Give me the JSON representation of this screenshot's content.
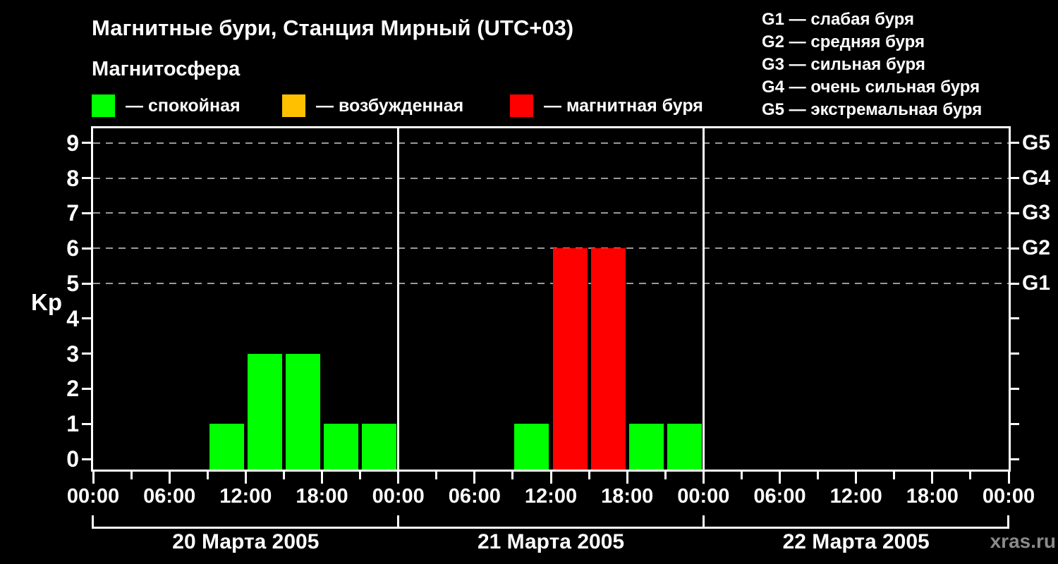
{
  "page": {
    "background": "#000000",
    "watermark": "xras.ru"
  },
  "header": {
    "title": "Магнитные бури, Станция Мирный (UTC+03)",
    "subtitle": "Магнитосфера"
  },
  "legend": {
    "items": [
      {
        "name": "quiet",
        "label": "— спокойная",
        "color": "#00ff00"
      },
      {
        "name": "excited",
        "label": "— возбужденная",
        "color": "#ffc000"
      },
      {
        "name": "storm",
        "label": "— магнитная буря",
        "color": "#ff0000"
      }
    ]
  },
  "g_legend": {
    "lines": [
      "G1 — слабая буря",
      "G2 — средняя буря",
      "G3 — сильная буря",
      "G4 — очень сильная буря",
      "G5 — экстремальная буря"
    ]
  },
  "chart_data": {
    "type": "bar",
    "title": "Магнитные бури, Станция Мирный (UTC+03)",
    "ylabel": "Kp",
    "ylim": [
      0,
      9
    ],
    "yticks": [
      0,
      1,
      2,
      3,
      4,
      5,
      6,
      7,
      8,
      9
    ],
    "grid_values": [
      5,
      6,
      7,
      8,
      9
    ],
    "grid_style": "dashed",
    "legend_position": "top",
    "right_axis_ticks": [
      0,
      1,
      2,
      3,
      4,
      5,
      6,
      7,
      8,
      9
    ],
    "right_axis_labels": [
      {
        "value": 9,
        "label": "G5"
      },
      {
        "value": 8,
        "label": "G4"
      },
      {
        "value": 7,
        "label": "G3"
      },
      {
        "value": 6,
        "label": "G2"
      },
      {
        "value": 5,
        "label": "G1"
      }
    ],
    "x_time_labels": [
      "00:00",
      "06:00",
      "12:00",
      "18:00"
    ],
    "interval_hours": 3,
    "days": [
      {
        "date": "20 Марта 2005",
        "kp": [
          0,
          0,
          0,
          1,
          3,
          3,
          1,
          1
        ]
      },
      {
        "date": "21 Марта 2005",
        "kp": [
          0,
          0,
          0,
          1,
          6,
          6,
          1,
          1
        ]
      },
      {
        "date": "22 Марта 2005",
        "kp": [
          0,
          0,
          0,
          0,
          0,
          0,
          0,
          0
        ]
      }
    ],
    "color_rules": {
      "quiet_max": 3,
      "excited_value": 4,
      "storm_min": 5
    },
    "colors": {
      "quiet": "#00ff00",
      "excited": "#ffc000",
      "storm": "#ff0000",
      "grid": "#999999",
      "axis": "#ffffff",
      "text": "#ffffff",
      "watermark": "#8a8a8a"
    }
  }
}
